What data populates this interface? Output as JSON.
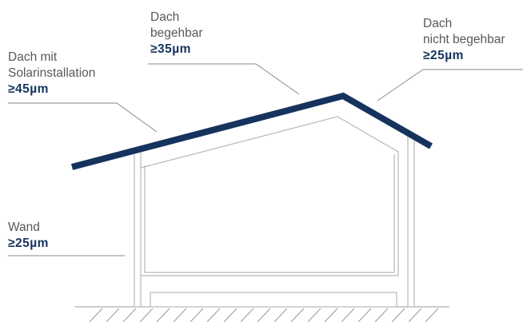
{
  "labels": {
    "solar": {
      "line1": "Dach mit",
      "line2": "Solarinstallation",
      "value": "≥45µm"
    },
    "walkable": {
      "line1": "Dach",
      "line2": "begehbar",
      "value": "≥35µm"
    },
    "non_walkable": {
      "line1": "Dach",
      "line2": "nicht begehbar",
      "value": "≥25µm"
    },
    "wall": {
      "line1": "Wand",
      "value": "≥25µm"
    }
  },
  "colors": {
    "roof": "#16335e",
    "value_text": "#16335e",
    "label_text": "#55585d",
    "structure": "#b8b8b8",
    "leader": "#8a8a8a"
  }
}
